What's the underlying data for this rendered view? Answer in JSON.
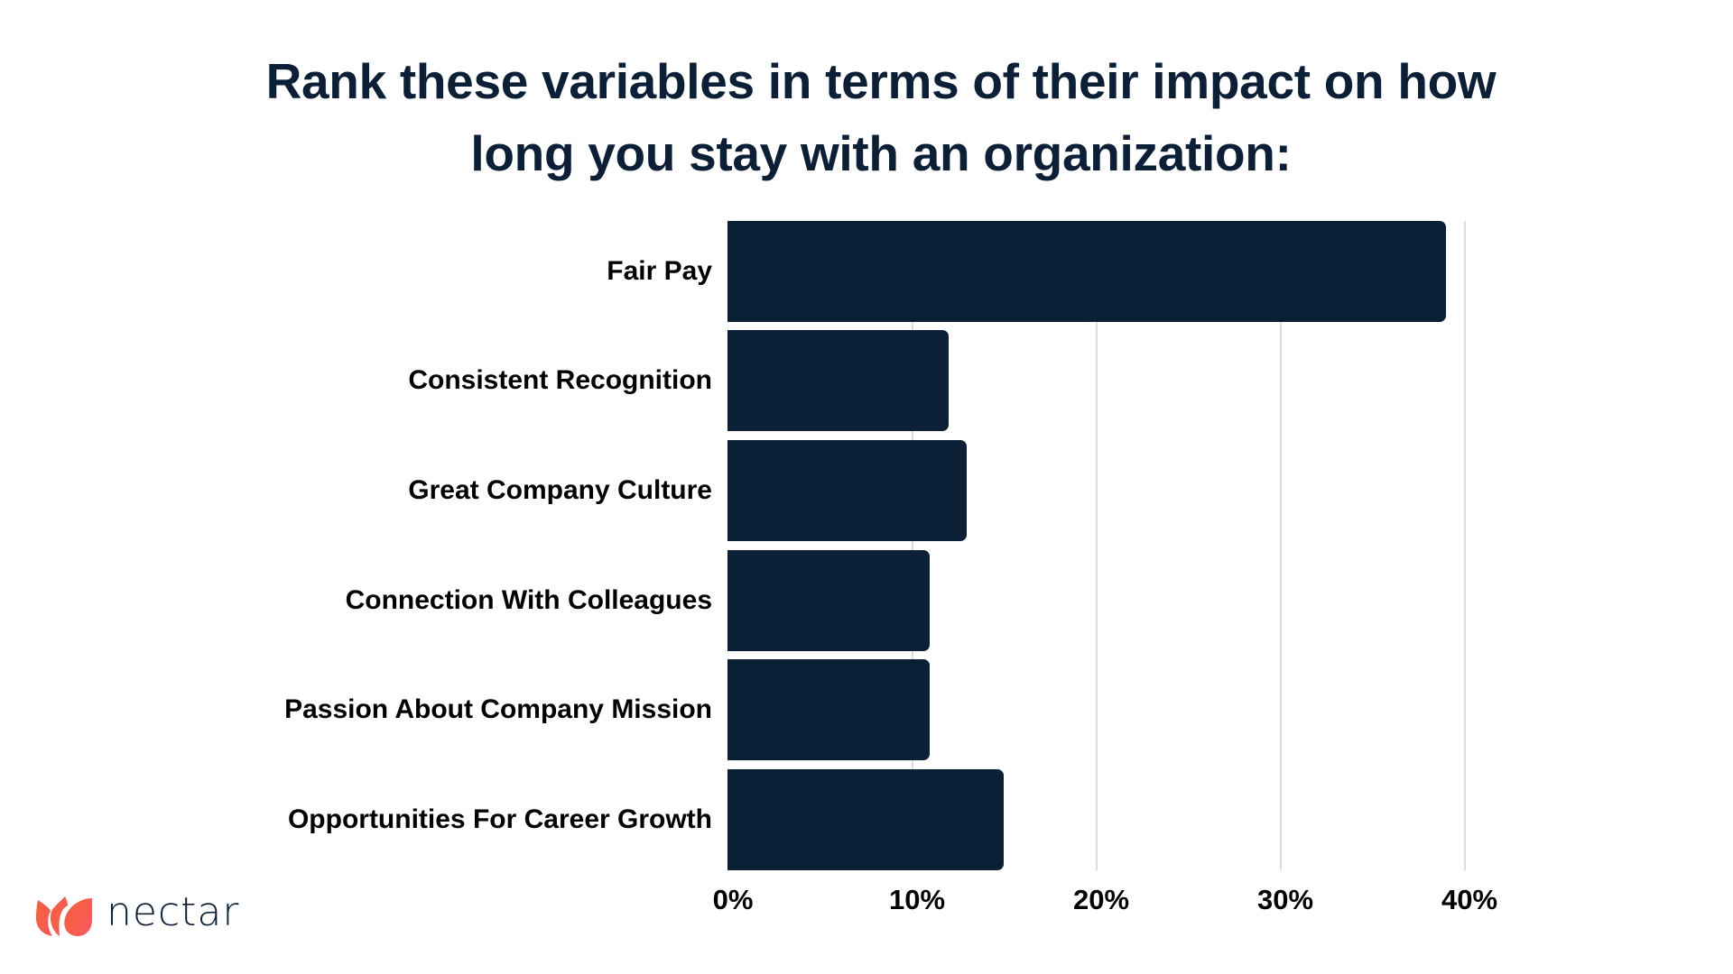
{
  "title": {
    "line1": "Rank these variables in terms of their impact on how",
    "line2": "long you stay with an organization:"
  },
  "colors": {
    "bar": "#0B1F36",
    "title": "#0B1F36",
    "gridline": "#DDDDDD",
    "logo_accent": "#FF5A4E"
  },
  "logo": {
    "icon": "tulip-petals-icon",
    "text": "nectar"
  },
  "chart_data": {
    "type": "bar",
    "orientation": "horizontal",
    "title": "Rank these variables in terms of their impact on how long you stay with an organization:",
    "categories": [
      "Fair Pay",
      "Consistent Recognition",
      "Great Company Culture",
      "Connection With Colleagues",
      "Passion About Company Mission",
      "Opportunities For Career Growth"
    ],
    "values": [
      39,
      12,
      13,
      11,
      11,
      15
    ],
    "unit": "%",
    "xlabel": "",
    "ylabel": "",
    "xlim": [
      0,
      40
    ],
    "x_ticks": [
      "0%",
      "10%",
      "20%",
      "30%",
      "40%"
    ],
    "grid": "vertical gridlines at each tick",
    "legend": "none"
  }
}
